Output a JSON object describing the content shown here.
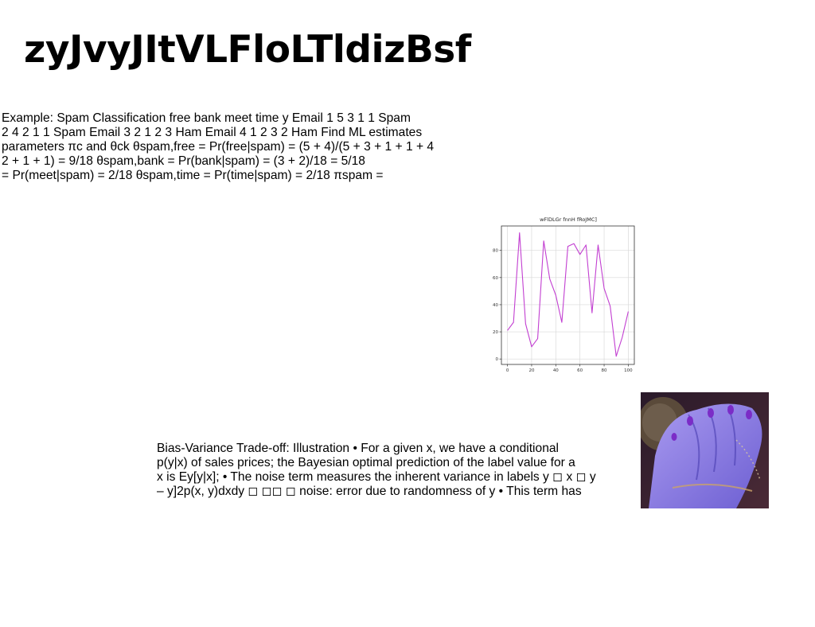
{
  "slide": {
    "title": "zyJvyJItVLFloLTldizBsf"
  },
  "text_block_1": {
    "lines": [
      "Example: Spam Classification free bank meet time y Email 1 5 3 1 1 Spam",
      "2 4 2 1 1 Spam Email 3 2 1 2 3 Ham Email 4 1 2 3 2 Ham Find ML estimates",
      "parameters πc and θck θspam,free = Pr(free|spam) = (5 + 4)/(5 + 3 + 1 + 1 + 4",
      "2 + 1 + 1) = 9/18 θspam,bank = Pr(bank|spam) = (3 + 2)/18 = 5/18",
      "= Pr(meet|spam) = 2/18 θspam,time = Pr(time|spam) = 2/18 πspam ="
    ]
  },
  "text_block_2": {
    "lines": [
      "Bias-Variance Trade-off: Illustration • For a given x, we have a conditional",
      "p(y|x) of sales prices; the Bayesian optimal prediction of the label value for a",
      "x is Ey[y|x]; • The noise term measures the inherent variance in labels y ◻ x ◻ y",
      "– y]2p(x, y)dxdy ◻ ◻◻ ◻ noise: error due to randomness of y • This term has"
    ]
  },
  "chart_data": {
    "type": "line",
    "title": "wFlDLGr fnnH fRoJMC]",
    "xlabel": "",
    "ylabel": "",
    "xlim": [
      -5,
      105
    ],
    "ylim": [
      -4,
      98
    ],
    "xticks": [
      0,
      20,
      40,
      60,
      80,
      100
    ],
    "yticks": [
      0,
      20,
      40,
      60,
      80
    ],
    "grid": true,
    "line_color": "#c23fd1",
    "x": [
      0,
      5,
      10,
      15,
      20,
      25,
      30,
      35,
      40,
      45,
      50,
      55,
      60,
      65,
      70,
      75,
      80,
      85,
      90,
      95,
      100
    ],
    "values": [
      21,
      27,
      93,
      26,
      9,
      15,
      87,
      59,
      47,
      27,
      83,
      85,
      77,
      84,
      34,
      84,
      52,
      39,
      2,
      16,
      35
    ]
  },
  "photo": {
    "icon": "photo-hand-icon",
    "colors": {
      "background": "#3b2233",
      "skin": "#8c7fe6",
      "nails": "#7b2cc7",
      "hair": "#5a4a3a"
    }
  }
}
